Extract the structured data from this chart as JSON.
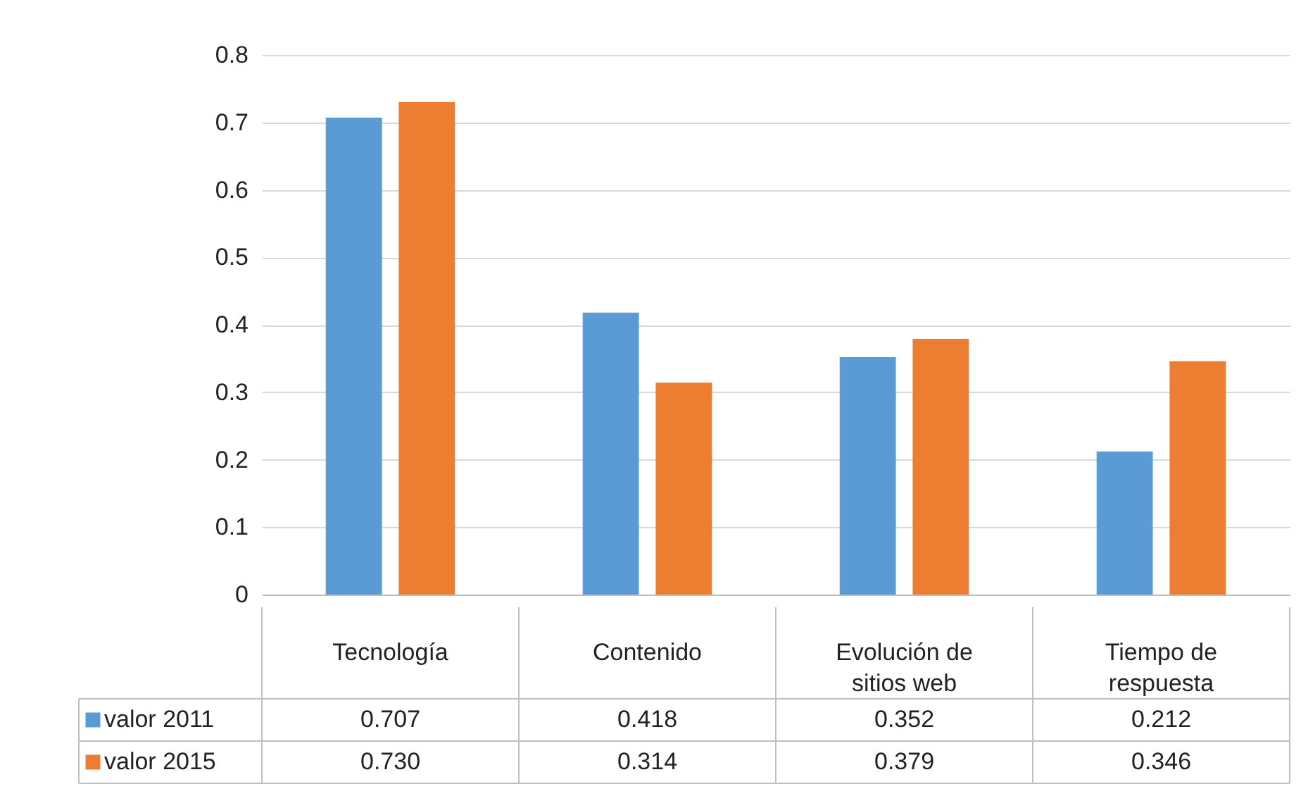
{
  "chart_data": {
    "type": "bar",
    "categories": [
      "Tecnología",
      "Contenido",
      "Evolución de sitios web",
      "Tiempo de respuesta"
    ],
    "series": [
      {
        "name": "valor 2011",
        "color": "#5b9bd5",
        "values": [
          0.707,
          0.418,
          0.352,
          0.212
        ],
        "value_labels": [
          "0.707",
          "0.418",
          "0.352",
          "0.212"
        ]
      },
      {
        "name": "valor 2015",
        "color": "#ed7d31",
        "values": [
          0.73,
          0.314,
          0.379,
          0.346
        ],
        "value_labels": [
          "0.730",
          "0.314",
          "0.379",
          "0.346"
        ]
      }
    ],
    "ylim": [
      0,
      0.8
    ],
    "yticks": [
      0,
      0.1,
      0.2,
      0.3,
      0.4,
      0.5,
      0.6,
      0.7,
      0.8
    ],
    "grid": "y",
    "legend": "bottom left"
  }
}
